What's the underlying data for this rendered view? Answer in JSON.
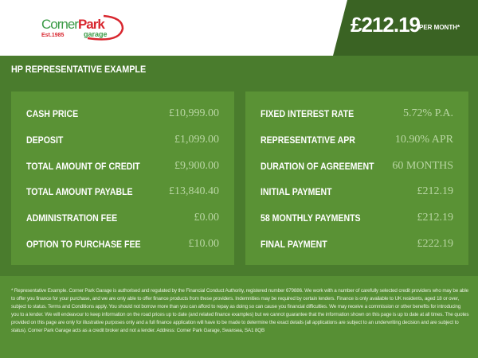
{
  "logo": {
    "text_corner": "Corner",
    "text_park": "Park",
    "est": "Est.1985",
    "garage": "garage"
  },
  "header": {
    "price": "£212.19",
    "per_month": "PER MONTH*"
  },
  "title": "HP REPRESENTATIVE EXAMPLE",
  "left": [
    {
      "label": "CASH PRICE",
      "value": "£10,999.00"
    },
    {
      "label": "DEPOSIT",
      "value": "£1,099.00"
    },
    {
      "label": "TOTAL AMOUNT OF CREDIT",
      "value": "£9,900.00"
    },
    {
      "label": "TOTAL AMOUNT PAYABLE",
      "value": "£13,840.40"
    },
    {
      "label": "ADMINISTRATION FEE",
      "value": "£0.00"
    },
    {
      "label": "OPTION TO PURCHASE FEE",
      "value": "£10.00"
    }
  ],
  "right": [
    {
      "label": "FIXED INTEREST RATE",
      "value": "5.72% P.A."
    },
    {
      "label": "REPRESENTATIVE APR",
      "value": "10.90% APR"
    },
    {
      "label": "DURATION OF AGREEMENT",
      "value": "60 MONTHS"
    },
    {
      "label": "INITIAL PAYMENT",
      "value": "£212.19"
    },
    {
      "label": "58 MONTHLY PAYMENTS",
      "value": "£212.19"
    },
    {
      "label": "FINAL PAYMENT",
      "value": "£222.19"
    }
  ],
  "footer": "* Representative Example. Corner Park Garage is authorised and regulated by the Financial Conduct Authority, registered number 679886. We work with a number of carefully selected credit providers who may be able to offer you finance for your purchase, and we are only able to offer finance products from these providers. Indemnities may be required by certain lenders. Finance is only available to UK residents, aged 18 or over, subject to status. Terms and Conditions apply. You should not borrow more than you can afford to repay as doing so can cause you financial difficulties. We may receive a commission or other benefits for introducing you to a lender. We will endeavour to keep information on the road prices up to date (and related finance examples) but we cannot guarantee that the information shown on this page is up to date at all times. The quotes provided on this page are only for illustrative purposes only and a full finance application will have to be made to determine the exact details (all applications are subject to an underwriting decision and are subject to status). Corner Park Garage acts as a credit broker and not a lender. Address: Corner Park Garage, Swansea, SA1 8QB"
}
